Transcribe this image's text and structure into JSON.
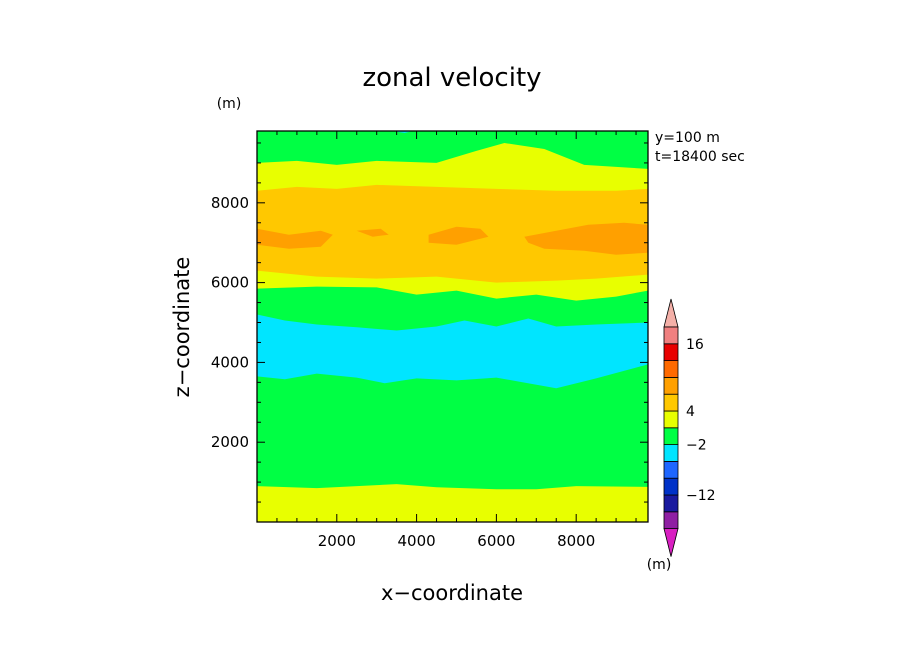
{
  "chart_data": {
    "type": "heatmap",
    "title": "zonal velocity",
    "xlabel": "x−coordinate",
    "ylabel": "z−coordinate",
    "x_unit": "(m)",
    "y_unit": "(m)",
    "colorbar_unit": "(m)",
    "annotations": [
      "y=100 m",
      "t=18400 sec"
    ],
    "xlim": [
      0,
      9800
    ],
    "ylim": [
      0,
      9800
    ],
    "xticks": [
      2000,
      4000,
      6000,
      8000
    ],
    "yticks": [
      2000,
      4000,
      6000,
      8000
    ],
    "colorbar": {
      "colors": [
        "#d81fc1",
        "#8f1fa3",
        "#1a1a9f",
        "#0032c8",
        "#1e66ff",
        "#00e5ff",
        "#00ff44",
        "#e8ff00",
        "#ffc800",
        "#ffa000",
        "#ff6a00",
        "#e80000",
        "#f08080",
        "#f4b0a8"
      ],
      "labels": [
        {
          "after_index": 2,
          "text": "−12"
        },
        {
          "after_index": 5,
          "text": "−2"
        },
        {
          "after_index": 7,
          "text": "4"
        },
        {
          "after_index": 11,
          "text": "16"
        }
      ]
    },
    "bands": [
      {
        "color": "#e8ff00",
        "boundary": [
          [
            0,
            900
          ],
          [
            1500,
            850
          ],
          [
            3500,
            950
          ],
          [
            4500,
            870
          ],
          [
            6000,
            820
          ],
          [
            7000,
            820
          ],
          [
            8000,
            900
          ],
          [
            9800,
            880
          ]
        ]
      },
      {
        "color": "#00ff44",
        "boundary": [
          [
            0,
            3650
          ],
          [
            700,
            3580
          ],
          [
            1500,
            3720
          ],
          [
            2500,
            3620
          ],
          [
            3200,
            3480
          ],
          [
            4000,
            3600
          ],
          [
            5000,
            3550
          ],
          [
            6000,
            3620
          ],
          [
            7500,
            3350
          ],
          [
            8500,
            3600
          ],
          [
            9800,
            3950
          ]
        ]
      },
      {
        "color": "#00e5ff",
        "boundary": [
          [
            0,
            5200
          ],
          [
            700,
            5050
          ],
          [
            1500,
            4950
          ],
          [
            2500,
            4880
          ],
          [
            3500,
            4800
          ],
          [
            4500,
            4900
          ],
          [
            5200,
            5050
          ],
          [
            6000,
            4900
          ],
          [
            6800,
            5100
          ],
          [
            7500,
            4900
          ],
          [
            8500,
            4950
          ],
          [
            9800,
            5000
          ]
        ]
      },
      {
        "color": "#00ff44",
        "boundary": [
          [
            0,
            5850
          ],
          [
            1500,
            5900
          ],
          [
            3000,
            5880
          ],
          [
            4000,
            5700
          ],
          [
            5000,
            5800
          ],
          [
            6000,
            5600
          ],
          [
            7000,
            5700
          ],
          [
            8000,
            5550
          ],
          [
            9000,
            5650
          ],
          [
            9800,
            5800
          ]
        ]
      },
      {
        "color": "#e8ff00",
        "boundary": [
          [
            0,
            6300
          ],
          [
            1500,
            6150
          ],
          [
            3000,
            6100
          ],
          [
            4500,
            6150
          ],
          [
            6000,
            6000
          ],
          [
            7500,
            6050
          ],
          [
            8500,
            6100
          ],
          [
            9800,
            6200
          ]
        ]
      },
      {
        "color": "#ffc800",
        "boundary": [
          [
            0,
            8300
          ],
          [
            1000,
            8400
          ],
          [
            2000,
            8350
          ],
          [
            3000,
            8450
          ],
          [
            4500,
            8400
          ],
          [
            6000,
            8350
          ],
          [
            7500,
            8300
          ],
          [
            9000,
            8300
          ],
          [
            9800,
            8350
          ]
        ]
      },
      {
        "color": "#e8ff00",
        "boundary": [
          [
            0,
            9000
          ],
          [
            1000,
            9050
          ],
          [
            2000,
            8950
          ],
          [
            3000,
            9050
          ],
          [
            4500,
            9000
          ],
          [
            5500,
            9300
          ],
          [
            6200,
            9500
          ],
          [
            7200,
            9350
          ],
          [
            8200,
            8950
          ],
          [
            9800,
            8850
          ]
        ]
      },
      {
        "color": "#00ff44",
        "boundary": [
          [
            0,
            9800
          ],
          [
            9800,
            9800
          ]
        ]
      }
    ],
    "orange_blobs": [
      [
        [
          0,
          7350
        ],
        [
          800,
          7200
        ],
        [
          1600,
          7300
        ],
        [
          1900,
          7200
        ],
        [
          1600,
          6900
        ],
        [
          800,
          6850
        ],
        [
          0,
          6950
        ]
      ],
      [
        [
          2500,
          7300
        ],
        [
          3100,
          7350
        ],
        [
          3300,
          7200
        ],
        [
          2900,
          7150
        ]
      ],
      [
        [
          4300,
          7200
        ],
        [
          5000,
          7400
        ],
        [
          5600,
          7350
        ],
        [
          5800,
          7150
        ],
        [
          5000,
          6950
        ],
        [
          4300,
          7000
        ]
      ],
      [
        [
          6700,
          7150
        ],
        [
          7500,
          7300
        ],
        [
          8300,
          7450
        ],
        [
          9200,
          7500
        ],
        [
          9800,
          7450
        ],
        [
          9800,
          6750
        ],
        [
          9000,
          6700
        ],
        [
          8200,
          6800
        ],
        [
          7200,
          6850
        ],
        [
          6800,
          7000
        ]
      ]
    ],
    "cyan_top_spot": [
      [
        3400,
        9800
      ],
      [
        3700,
        9750
      ],
      [
        3900,
        9800
      ]
    ],
    "cyan_small_spot": [
      [
        600,
        3700
      ],
      [
        900,
        3720
      ],
      [
        1000,
        3650
      ],
      [
        700,
        3600
      ]
    ]
  }
}
